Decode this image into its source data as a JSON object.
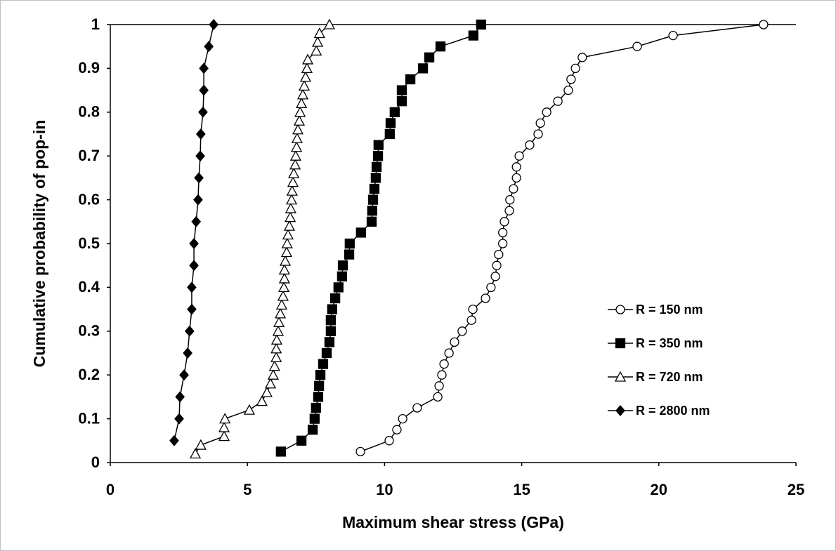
{
  "chart_data": {
    "type": "scatter",
    "xlabel": "Maximum shear stress (GPa)",
    "ylabel": "Cumulative probability of pop-in",
    "xlim": [
      0,
      25
    ],
    "xticks": [
      0,
      5,
      10,
      15,
      20,
      25
    ],
    "ylim": [
      0,
      1
    ],
    "yticks": [
      0,
      0.1,
      0.2,
      0.3,
      0.4,
      0.5,
      0.6,
      0.7,
      0.8,
      0.9,
      1
    ],
    "grid": false,
    "legend": "right",
    "lines": true,
    "series": [
      {
        "name": "R = 150 nm",
        "color": "#000000",
        "marker": "circle-open",
        "x": [
          9.12,
          10.17,
          10.45,
          10.66,
          11.19,
          11.94,
          11.99,
          12.09,
          12.17,
          12.35,
          12.55,
          12.83,
          13.17,
          13.22,
          13.68,
          13.88,
          14.04,
          14.09,
          14.16,
          14.31,
          14.31,
          14.37,
          14.55,
          14.57,
          14.7,
          14.81,
          14.81,
          14.91,
          15.29,
          15.6,
          15.68,
          15.91,
          16.32,
          16.7,
          16.8,
          16.96,
          17.21,
          19.21,
          20.52,
          23.82
        ],
        "values": [
          0.025,
          0.05,
          0.075,
          0.1,
          0.125,
          0.15,
          0.175,
          0.2,
          0.225,
          0.25,
          0.275,
          0.3,
          0.325,
          0.35,
          0.375,
          0.4,
          0.425,
          0.45,
          0.475,
          0.5,
          0.525,
          0.55,
          0.575,
          0.6,
          0.625,
          0.65,
          0.675,
          0.7,
          0.725,
          0.75,
          0.775,
          0.8,
          0.825,
          0.85,
          0.875,
          0.9,
          0.925,
          0.95,
          0.975,
          1
        ]
      },
      {
        "name": "R = 350 nm",
        "color": "#000000",
        "marker": "square",
        "x": [
          6.22,
          6.97,
          7.38,
          7.45,
          7.5,
          7.58,
          7.61,
          7.66,
          7.76,
          7.89,
          7.99,
          8.04,
          8.04,
          8.09,
          8.2,
          8.32,
          8.45,
          8.48,
          8.71,
          8.73,
          9.14,
          9.53,
          9.55,
          9.58,
          9.63,
          9.68,
          9.71,
          9.76,
          9.78,
          10.19,
          10.22,
          10.37,
          10.63,
          10.63,
          10.94,
          11.4,
          11.63,
          12.04,
          13.24,
          13.52
        ],
        "values": [
          0.025,
          0.05,
          0.075,
          0.1,
          0.125,
          0.15,
          0.175,
          0.2,
          0.225,
          0.25,
          0.275,
          0.3,
          0.325,
          0.35,
          0.375,
          0.4,
          0.425,
          0.45,
          0.475,
          0.5,
          0.525,
          0.55,
          0.575,
          0.6,
          0.625,
          0.65,
          0.675,
          0.7,
          0.725,
          0.75,
          0.775,
          0.8,
          0.825,
          0.85,
          0.875,
          0.9,
          0.925,
          0.95,
          0.975,
          1
        ]
      },
      {
        "name": "R = 720 nm",
        "color": "#000000",
        "marker": "triangle-open",
        "x": [
          3.1,
          3.3,
          4.15,
          4.15,
          4.18,
          5.07,
          5.53,
          5.71,
          5.84,
          5.94,
          5.99,
          6.05,
          6.05,
          6.07,
          6.12,
          6.15,
          6.2,
          6.25,
          6.3,
          6.33,
          6.35,
          6.35,
          6.38,
          6.43,
          6.45,
          6.48,
          6.53,
          6.56,
          6.58,
          6.61,
          6.63,
          6.66,
          6.69,
          6.74,
          6.76,
          6.79,
          6.81,
          6.84,
          6.89,
          6.92,
          6.97,
          7.02,
          7.07,
          7.12,
          7.17,
          7.2,
          7.51,
          7.56,
          7.63,
          7.99
        ],
        "values": [
          0.02,
          0.04,
          0.06,
          0.08,
          0.1,
          0.12,
          0.14,
          0.16,
          0.18,
          0.2,
          0.22,
          0.24,
          0.26,
          0.28,
          0.3,
          0.32,
          0.34,
          0.36,
          0.38,
          0.4,
          0.42,
          0.44,
          0.46,
          0.48,
          0.5,
          0.52,
          0.54,
          0.56,
          0.58,
          0.6,
          0.62,
          0.64,
          0.66,
          0.68,
          0.7,
          0.72,
          0.74,
          0.76,
          0.78,
          0.8,
          0.82,
          0.84,
          0.86,
          0.88,
          0.9,
          0.92,
          0.94,
          0.96,
          0.98,
          1
        ]
      },
      {
        "name": "R = 2800 nm",
        "color": "#000000",
        "marker": "diamond",
        "x": [
          2.33,
          2.51,
          2.54,
          2.69,
          2.82,
          2.89,
          2.97,
          2.97,
          3.05,
          3.05,
          3.13,
          3.2,
          3.23,
          3.28,
          3.3,
          3.38,
          3.41,
          3.41,
          3.59,
          3.77
        ],
        "values": [
          0.05,
          0.1,
          0.15,
          0.2,
          0.25,
          0.3,
          0.35,
          0.4,
          0.45,
          0.5,
          0.55,
          0.6,
          0.65,
          0.7,
          0.75,
          0.8,
          0.85,
          0.9,
          0.95,
          1
        ]
      }
    ]
  }
}
